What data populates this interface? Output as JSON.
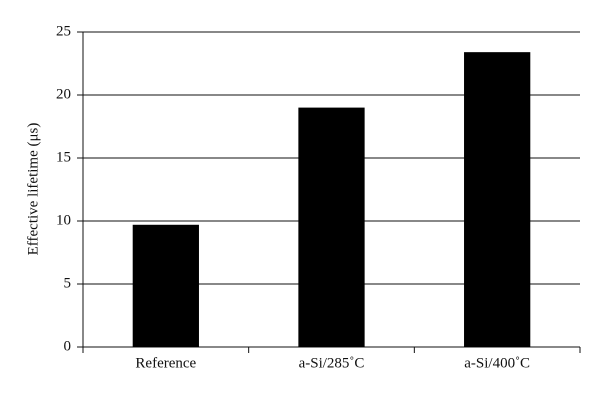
{
  "chart_data": {
    "type": "bar",
    "y_label": "Effective lifetime (μs)",
    "categories": [
      "Reference",
      "a-Si/285˚C",
      "a-Si/400˚C"
    ],
    "values": [
      9.7,
      19.0,
      23.4
    ],
    "color": "#000000",
    "ylim": [
      0,
      25
    ],
    "yticks": [
      0,
      5,
      10,
      15,
      20,
      25
    ],
    "grid": true
  }
}
